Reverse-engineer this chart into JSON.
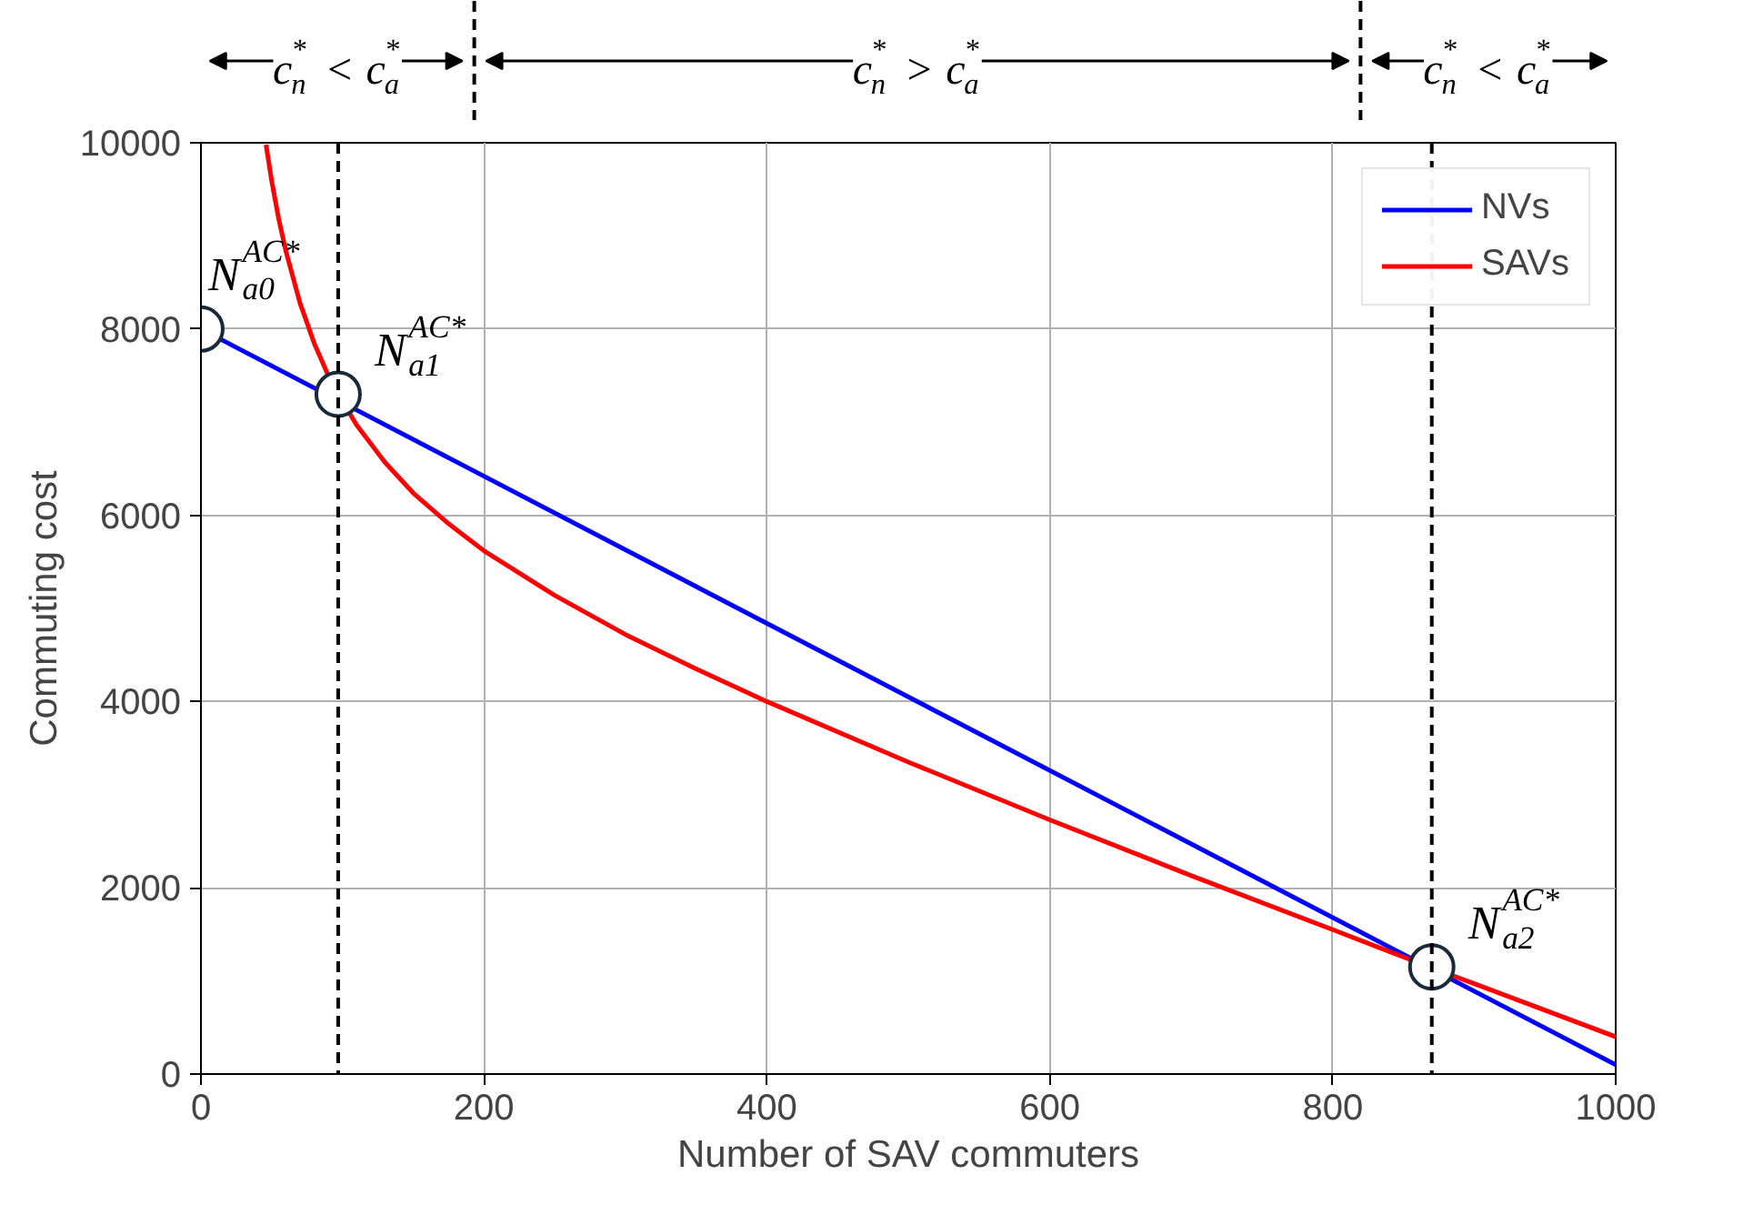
{
  "chart_data": {
    "type": "line",
    "xlabel": "Number of SAV commuters",
    "ylabel": "Commuting cost",
    "xlim": [
      0,
      1000
    ],
    "ylim": [
      0,
      10000
    ],
    "xticks": [
      0,
      200,
      400,
      600,
      800,
      1000
    ],
    "yticks": [
      0,
      2000,
      4000,
      6000,
      8000,
      10000
    ],
    "grid": true,
    "legend": "top right",
    "series": [
      {
        "name": "NVs",
        "color": "#0000ff",
        "x": [
          0,
          1000
        ],
        "values": [
          8000,
          100
        ]
      },
      {
        "name": "SAVs",
        "color": "#ff0000",
        "x": [
          46,
          50,
          55,
          60,
          70,
          80,
          90,
          97,
          110,
          130,
          150,
          175,
          200,
          250,
          300,
          350,
          400,
          500,
          600,
          700,
          800,
          870,
          900,
          1000
        ],
        "values": [
          9980,
          9590,
          9180,
          8840,
          8280,
          7850,
          7500,
          7300,
          6970,
          6570,
          6240,
          5910,
          5620,
          5140,
          4720,
          4350,
          4000,
          3350,
          2730,
          2130,
          1550,
          1140,
          970,
          400
        ]
      }
    ],
    "ref_lines": [
      {
        "axis": "x",
        "value": 97,
        "color": "#000000",
        "line_style": "dashed"
      },
      {
        "axis": "x",
        "value": 870,
        "color": "#000000",
        "line_style": "dashed"
      }
    ],
    "annotations": [
      {
        "text": "N$^{AC*}$$_{a0}$",
        "x": 0,
        "y": 8000
      },
      {
        "text": "N$^{AC*}$$_{a1}$",
        "x": 97,
        "y": 7300
      },
      {
        "text": "N$^{AC*}$$_{a2}$",
        "x": 870,
        "y": 1150
      },
      "c$^{*}$$_{n}$ < c$^{*}$$_{a}$",
      "c$^{*}$$_{n}$ > c$^{*}$$_{a}$",
      "c$^{*}$$_{n}$ < c$^{*}$$_{a}$"
    ]
  }
}
